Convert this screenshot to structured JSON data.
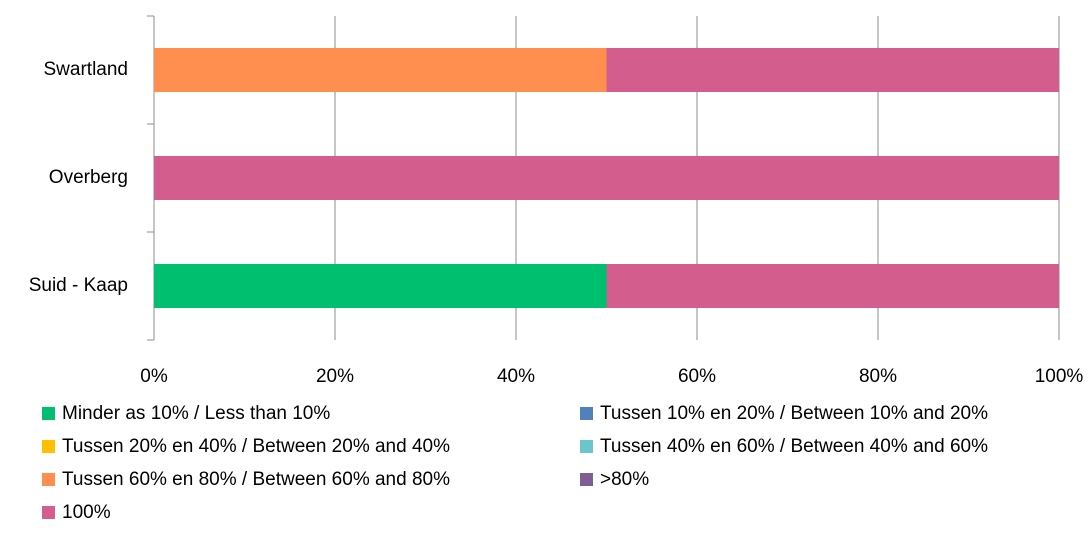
{
  "chart_data": {
    "type": "stacked_barh",
    "categories": [
      "Suid - Kaap",
      "Overberg",
      "Swartland"
    ],
    "series": [
      {
        "name": "Minder as 10% / Less than 10%",
        "color": "#00bf6f",
        "values": [
          50,
          0,
          0
        ]
      },
      {
        "name": "Tussen 10% en 20% / Between 10% and 20%",
        "color": "#4f81bd",
        "values": [
          0,
          0,
          0
        ]
      },
      {
        "name": "Tussen 20% en 40% / Between 20% and 40%",
        "color": "#ffc000",
        "values": [
          0,
          0,
          0
        ]
      },
      {
        "name": "Tussen 40% en 60% / Between 40% and 60%",
        "color": "#6cc6c9",
        "values": [
          0,
          0,
          0
        ]
      },
      {
        "name": "Tussen 60% en 80% / Between 60% and 80%",
        "color": "#ff8f4f",
        "values": [
          0,
          0,
          50
        ]
      },
      {
        "name": ">80%",
        "color": "#7f5f93",
        "values": [
          0,
          0,
          0
        ]
      },
      {
        "name": "100%",
        "color": "#d35e8e",
        "values": [
          50,
          100,
          50
        ]
      }
    ],
    "xlim": [
      0,
      100
    ],
    "xticks": [
      {
        "value": 0,
        "label": "0%"
      },
      {
        "value": 20,
        "label": "20%"
      },
      {
        "value": 40,
        "label": "40%"
      },
      {
        "value": 60,
        "label": "60%"
      },
      {
        "value": 80,
        "label": "80%"
      },
      {
        "value": 100,
        "label": "100%"
      }
    ],
    "grid": true,
    "legend": "bottom"
  }
}
